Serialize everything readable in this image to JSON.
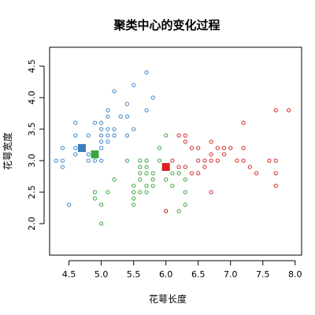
{
  "chart_data": {
    "type": "scatter",
    "title": "聚类中心的变化过程",
    "xlabel": "花萼长度",
    "ylabel": "花萼宽度",
    "xlim": [
      4.2,
      8.1
    ],
    "ylim": [
      1.5,
      4.8
    ],
    "x_ticks": [
      4.5,
      5.0,
      5.5,
      6.0,
      6.5,
      7.0,
      7.5,
      8.0
    ],
    "y_ticks": [
      2.0,
      2.5,
      3.0,
      3.5,
      4.0,
      4.5
    ],
    "x_tick_labels": [
      "4.5",
      "5.0",
      "5.5",
      "6.0",
      "6.5",
      "7.0",
      "7.5",
      "8.0"
    ],
    "y_tick_labels": [
      "2.0",
      "2.5",
      "3.0",
      "3.5",
      "4.0",
      "4.5"
    ],
    "grid": false,
    "series": [
      {
        "color": "#3a86c8",
        "marker": "open-circle",
        "points": [
          [
            4.3,
            3.0
          ],
          [
            4.4,
            3.2
          ],
          [
            4.4,
            3.0
          ],
          [
            4.4,
            2.9
          ],
          [
            4.5,
            2.3
          ],
          [
            4.6,
            3.1
          ],
          [
            4.6,
            3.2
          ],
          [
            4.6,
            3.4
          ],
          [
            4.6,
            3.6
          ],
          [
            4.7,
            3.2
          ],
          [
            4.8,
            3.4
          ],
          [
            4.8,
            3.1
          ],
          [
            4.8,
            3.0
          ],
          [
            4.9,
            3.0
          ],
          [
            4.9,
            3.6
          ],
          [
            5.0,
            3.0
          ],
          [
            5.0,
            3.2
          ],
          [
            5.0,
            3.3
          ],
          [
            5.0,
            3.4
          ],
          [
            5.0,
            3.5
          ],
          [
            5.0,
            3.6
          ],
          [
            5.1,
            3.3
          ],
          [
            5.1,
            3.5
          ],
          [
            5.1,
            3.4
          ],
          [
            5.1,
            3.8
          ],
          [
            5.1,
            3.7
          ],
          [
            5.2,
            3.4
          ],
          [
            5.2,
            3.5
          ],
          [
            5.2,
            4.1
          ],
          [
            5.3,
            3.7
          ],
          [
            5.4,
            3.4
          ],
          [
            5.4,
            3.7
          ],
          [
            5.4,
            3.9
          ],
          [
            5.5,
            3.5
          ],
          [
            5.5,
            4.2
          ],
          [
            5.7,
            3.8
          ],
          [
            5.7,
            4.4
          ],
          [
            5.8,
            4.0
          ]
        ]
      },
      {
        "color": "#3aa640",
        "marker": "open-circle",
        "points": [
          [
            4.9,
            2.5
          ],
          [
            4.9,
            2.4
          ],
          [
            5.0,
            2.0
          ],
          [
            5.0,
            2.3
          ],
          [
            5.1,
            2.5
          ],
          [
            5.2,
            2.7
          ],
          [
            5.4,
            3.0
          ],
          [
            5.5,
            2.3
          ],
          [
            5.5,
            2.4
          ],
          [
            5.5,
            2.5
          ],
          [
            5.5,
            2.6
          ],
          [
            5.6,
            2.5
          ],
          [
            5.6,
            2.7
          ],
          [
            5.6,
            2.8
          ],
          [
            5.6,
            2.9
          ],
          [
            5.6,
            3.0
          ],
          [
            5.7,
            2.6
          ],
          [
            5.7,
            2.8
          ],
          [
            5.7,
            2.9
          ],
          [
            5.7,
            3.0
          ],
          [
            5.7,
            2.5
          ],
          [
            5.8,
            2.7
          ],
          [
            5.8,
            2.8
          ],
          [
            5.8,
            2.6
          ],
          [
            5.9,
            3.0
          ],
          [
            5.9,
            3.2
          ],
          [
            6.0,
            2.2
          ],
          [
            6.0,
            2.7
          ],
          [
            6.0,
            3.4
          ],
          [
            6.1,
            2.6
          ],
          [
            6.1,
            2.8
          ],
          [
            6.2,
            2.2
          ],
          [
            6.2,
            2.8
          ],
          [
            6.3,
            2.3
          ],
          [
            6.3,
            2.5
          ],
          [
            6.3,
            2.7
          ],
          [
            6.0,
            2.9
          ]
        ]
      },
      {
        "color": "#d42a2a",
        "marker": "open-circle",
        "points": [
          [
            6.0,
            2.2
          ],
          [
            6.1,
            3.0
          ],
          [
            6.2,
            2.9
          ],
          [
            6.2,
            3.4
          ],
          [
            6.3,
            2.9
          ],
          [
            6.3,
            3.3
          ],
          [
            6.3,
            3.4
          ],
          [
            6.4,
            2.8
          ],
          [
            6.4,
            3.2
          ],
          [
            6.5,
            3.0
          ],
          [
            6.5,
            3.2
          ],
          [
            6.5,
            2.8
          ],
          [
            6.6,
            3.0
          ],
          [
            6.6,
            2.9
          ],
          [
            6.7,
            3.0
          ],
          [
            6.7,
            3.1
          ],
          [
            6.7,
            2.5
          ],
          [
            6.7,
            3.3
          ],
          [
            6.8,
            3.0
          ],
          [
            6.8,
            3.2
          ],
          [
            6.9,
            3.1
          ],
          [
            6.9,
            3.2
          ],
          [
            7.0,
            3.2
          ],
          [
            7.1,
            3.0
          ],
          [
            7.2,
            3.0
          ],
          [
            7.2,
            3.2
          ],
          [
            7.2,
            3.6
          ],
          [
            7.3,
            2.9
          ],
          [
            7.4,
            2.8
          ],
          [
            7.6,
            3.0
          ],
          [
            7.7,
            2.6
          ],
          [
            7.7,
            2.8
          ],
          [
            7.7,
            3.0
          ],
          [
            7.7,
            3.8
          ],
          [
            7.9,
            3.8
          ]
        ]
      }
    ],
    "centers": [
      {
        "color": "#3a7fc0",
        "x": 4.7,
        "y": 3.2
      },
      {
        "color": "#3aa640",
        "x": 4.9,
        "y": 3.1
      },
      {
        "color": "#e02020",
        "x": 6.0,
        "y": 2.9
      }
    ]
  }
}
